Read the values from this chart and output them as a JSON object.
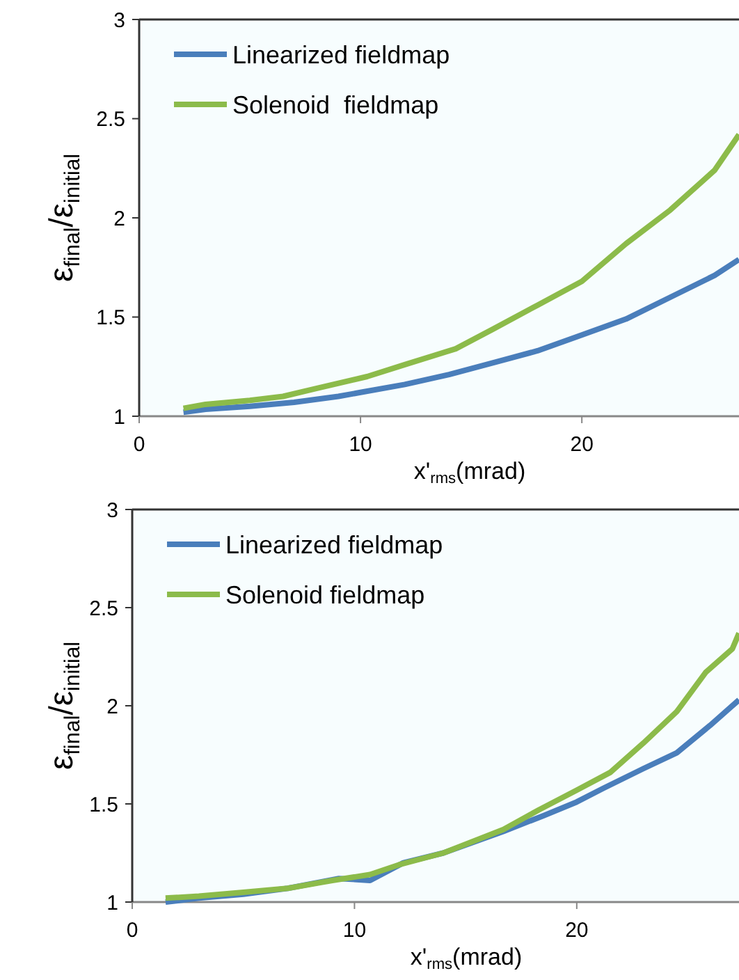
{
  "chart_data": [
    {
      "type": "line",
      "xlabel": "x'$_{rms}$(mrad)",
      "ylabel": "ε$_{final}$/ε$_{initial}$",
      "xlim": [
        0,
        27.1
      ],
      "ylim": [
        1,
        3
      ],
      "xticks": [
        0,
        10,
        20
      ],
      "yticks": [
        1,
        1.5,
        2,
        2.5,
        3
      ],
      "legend": "top left",
      "grid": false,
      "marker": "none",
      "series": [
        {
          "name": "Linearized fieldmap",
          "color": "#4a7ebb",
          "x": [
            2,
            3,
            5,
            7,
            9,
            10,
            12,
            14,
            16,
            18,
            20,
            22,
            24,
            26,
            27.1
          ],
          "values": [
            1.02,
            1.035,
            1.05,
            1.07,
            1.1,
            1.12,
            1.16,
            1.21,
            1.27,
            1.33,
            1.41,
            1.49,
            1.6,
            1.71,
            1.79
          ]
        },
        {
          "name": "Solenoid  fieldmap",
          "color": "#8cbb4a",
          "x": [
            2,
            3,
            5,
            6.5,
            8,
            10.3,
            12,
            14.3,
            16,
            18,
            20,
            22,
            24,
            26,
            27.1
          ],
          "values": [
            1.04,
            1.06,
            1.08,
            1.1,
            1.14,
            1.2,
            1.26,
            1.34,
            1.44,
            1.56,
            1.68,
            1.87,
            2.04,
            2.24,
            2.42
          ]
        }
      ]
    },
    {
      "type": "line",
      "xlabel": "x'$_{rms}$(mrad)",
      "ylabel": "ε$_{final}$/ε$_{initial}$",
      "xlim": [
        0,
        27.3
      ],
      "ylim": [
        1,
        3
      ],
      "xticks": [
        0,
        10,
        20
      ],
      "yticks": [
        1,
        1.5,
        2,
        2.5,
        3
      ],
      "legend": "top left",
      "grid": false,
      "marker": "none",
      "series": [
        {
          "name": "Linearized fieldmap",
          "color": "#4a7ebb",
          "x": [
            1.5,
            3,
            5,
            7,
            9.3,
            10.7,
            12.2,
            14,
            16.7,
            18.5,
            20,
            21.2,
            23,
            24.5,
            26,
            27.3
          ],
          "values": [
            1.0,
            1.02,
            1.04,
            1.07,
            1.12,
            1.11,
            1.2,
            1.25,
            1.36,
            1.44,
            1.51,
            1.58,
            1.68,
            1.76,
            1.9,
            2.03
          ]
        },
        {
          "name": "Solenoid fieldmap",
          "color": "#8cbb4a",
          "x": [
            1.5,
            3,
            5,
            7,
            9,
            10.7,
            12,
            14,
            16.7,
            18.3,
            20,
            21.5,
            23,
            24.5,
            25.8,
            27,
            27.3
          ],
          "values": [
            1.02,
            1.03,
            1.05,
            1.07,
            1.11,
            1.14,
            1.19,
            1.25,
            1.37,
            1.47,
            1.57,
            1.66,
            1.81,
            1.97,
            2.17,
            2.29,
            2.37
          ]
        }
      ]
    }
  ]
}
